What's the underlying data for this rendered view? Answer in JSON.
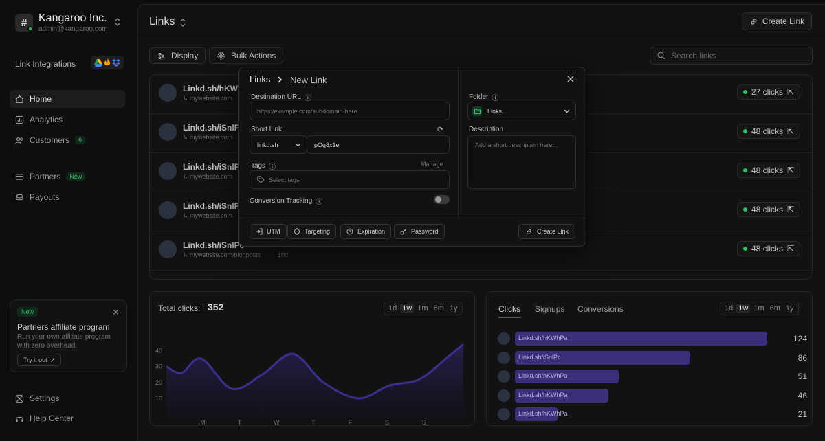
{
  "workspace": {
    "name": "Kangaroo Inc.",
    "email": "admin@kangaroo.com",
    "initial": "#"
  },
  "sidebar": {
    "integrations_label": "Link Integrations",
    "items": [
      {
        "label": "Home",
        "icon": "home-icon",
        "active": true
      },
      {
        "label": "Analytics",
        "icon": "analytics-icon"
      },
      {
        "label": "Customers",
        "icon": "users-icon",
        "badge": "6"
      },
      {
        "label": "Partners",
        "icon": "partners-icon",
        "badge": "New"
      },
      {
        "label": "Payouts",
        "icon": "payouts-icon"
      }
    ],
    "promo": {
      "badge": "New",
      "title": "Partners affiliate program",
      "description": "Run your own affiliate program with zero overhead",
      "button": "Try it out"
    },
    "footer": [
      {
        "label": "Settings",
        "icon": "settings-icon"
      },
      {
        "label": "Help Center",
        "icon": "help-icon"
      }
    ]
  },
  "header": {
    "title": "Links",
    "create_label": "Create Link"
  },
  "toolbar": {
    "display_label": "Display",
    "bulk_label": "Bulk Actions",
    "search_placeholder": "Search links"
  },
  "links": [
    {
      "short": "Linkd.sh/hKWhPa",
      "dest": "mywebsite.com",
      "age": "",
      "clicks": "27 clicks"
    },
    {
      "short": "Linkd.sh/iSnlPc",
      "dest": "mywebsite.com",
      "age": "",
      "clicks": "48 clicks"
    },
    {
      "short": "Linkd.sh/iSnlPc",
      "dest": "mywebsite.com",
      "age": "",
      "clicks": "48 clicks"
    },
    {
      "short": "Linkd.sh/iSnlPc",
      "dest": "mywebsite.com",
      "age": "",
      "clicks": "48 clicks"
    },
    {
      "short": "Linkd.sh/iSnlPc",
      "dest": "mywebsite.com/blogposts",
      "age": "10d",
      "clicks": "48 clicks"
    }
  ],
  "total_clicks": {
    "label": "Total clicks:",
    "value": "352"
  },
  "ranges": [
    "1d",
    "1w",
    "1m",
    "6m",
    "1y"
  ],
  "active_range": "1w",
  "tabs": [
    {
      "label": "Clicks",
      "active": true
    },
    {
      "label": "Signups"
    },
    {
      "label": "Conversions"
    }
  ],
  "top_links": [
    {
      "label": "Linkd.sh/hKWhPa",
      "value": 124
    },
    {
      "label": "Linkd.sh/iSnlPc",
      "value": 86
    },
    {
      "label": "Linkd.sh/hKWhPa",
      "value": 51
    },
    {
      "label": "Linkd.sh/hKWhPa",
      "value": 46
    },
    {
      "label": "Linkd.sh/hKWhPa",
      "value": 21
    }
  ],
  "modal": {
    "breadcrumb_root": "Links",
    "breadcrumb_current": "New Link",
    "destination_label": "Destination URL",
    "destination_placeholder": "https:/example.com/subdomain-here",
    "short_link_label": "Short Link",
    "domain": "linkd.sh",
    "slug": "pOg8x1e",
    "tags_label": "Tags",
    "tags_manage": "Manage",
    "tags_placeholder": "Select tags",
    "conversion_label": "Conversion Tracking",
    "conversion_enabled": false,
    "folder_label": "Folder",
    "folder_value": "Links",
    "description_label": "Description",
    "description_placeholder": "Add a short description here...",
    "buttons": {
      "utm": "UTM",
      "targeting": "Targeting",
      "expiration": "Expiration",
      "password": "Password",
      "create": "Create Link"
    }
  },
  "chart_data": {
    "type": "area",
    "x": [
      "M",
      "T",
      "W",
      "T",
      "F",
      "S",
      "S"
    ],
    "y_ticks": [
      10,
      20,
      30,
      40
    ],
    "ylim": [
      0,
      45
    ],
    "series": [
      {
        "name": "",
        "points": [
          [
            0,
            30
          ],
          [
            0.35,
            26
          ],
          [
            0.8,
            35
          ],
          [
            1.5,
            16
          ],
          [
            2.2,
            25
          ],
          [
            2.9,
            38
          ],
          [
            3.6,
            20
          ],
          [
            4.4,
            10
          ],
          [
            5.1,
            18
          ],
          [
            5.8,
            22
          ],
          [
            6.4,
            35
          ],
          [
            6.8,
            44
          ]
        ]
      }
    ],
    "colors": {
      "line": "#3b2f8f",
      "fill": "#241e4a"
    }
  }
}
